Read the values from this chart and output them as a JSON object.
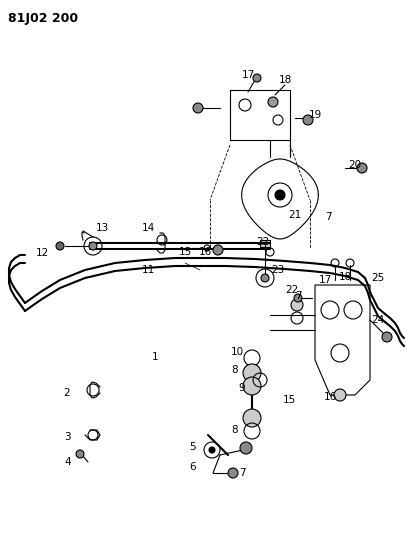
{
  "title": "81J02 200",
  "bg": "#ffffff",
  "lc": "#000000",
  "fig_w": 4.07,
  "fig_h": 5.33,
  "dpi": 100
}
